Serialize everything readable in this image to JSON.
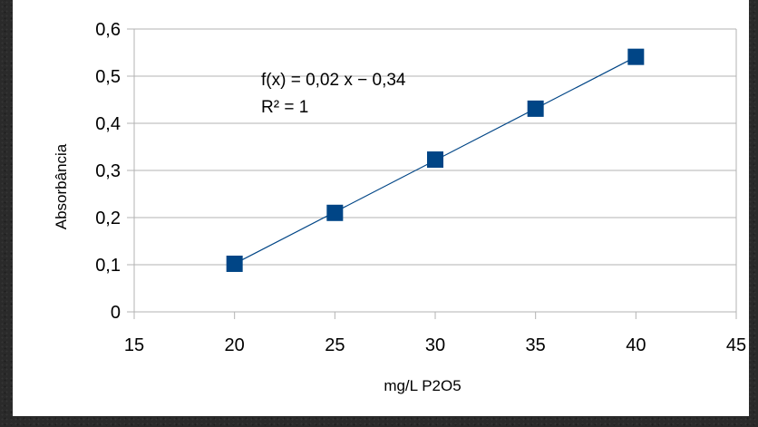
{
  "chart_data": {
    "type": "scatter",
    "title": "",
    "xlabel": "mg/L P2O5",
    "ylabel": "Absorbância",
    "xlim": [
      15,
      45
    ],
    "ylim": [
      0,
      0.6
    ],
    "x_ticks": [
      "15",
      "20",
      "25",
      "30",
      "35",
      "40",
      "45"
    ],
    "y_ticks": [
      "0",
      "0,1",
      "0,2",
      "0,3",
      "0,4",
      "0,5",
      "0,6"
    ],
    "grid": "horizontal",
    "legend": "none",
    "series": [
      {
        "x": [
          20,
          25,
          30,
          35,
          40
        ],
        "y": [
          0.102,
          0.21,
          0.323,
          0.431,
          0.541
        ],
        "marker": "square",
        "color": "#004586"
      }
    ],
    "trendline": {
      "type": "linear",
      "slope": 0.02,
      "intercept": -0.34,
      "color": "#004586",
      "equation_text": "f(x) = 0,02 x − 0,34",
      "r2_text": "R² = 1"
    }
  }
}
